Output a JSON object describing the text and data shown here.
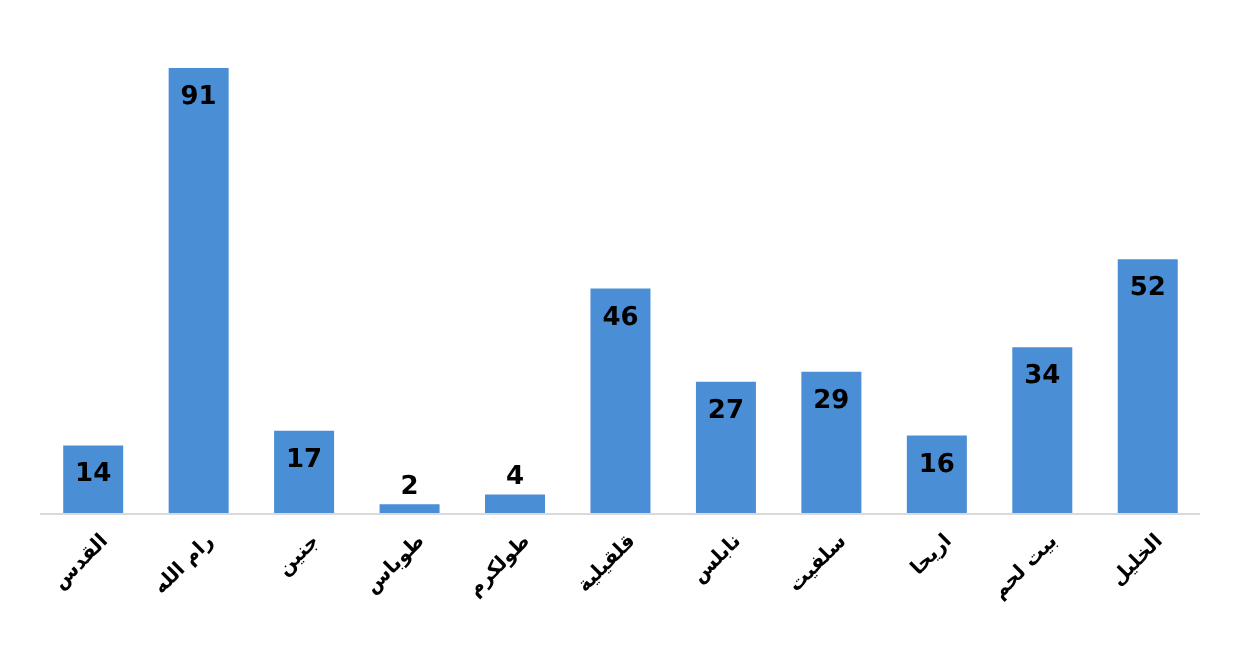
{
  "chart_data": {
    "type": "bar",
    "categories": [
      "القدس",
      "رام الله",
      "جنين",
      "طوباس",
      "طولكرم",
      "قلقيلية",
      "نابلس",
      "سلفيت",
      "اريحا",
      "بيت لحم",
      "الخليل"
    ],
    "values": [
      14,
      91,
      17,
      2,
      4,
      46,
      27,
      29,
      16,
      34,
      52
    ],
    "color": "#4a8fd6",
    "data_labels": true
  }
}
